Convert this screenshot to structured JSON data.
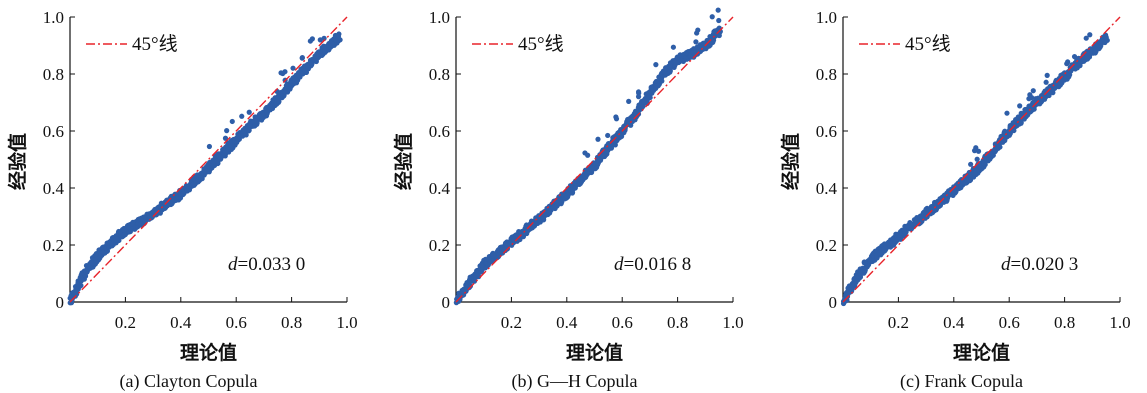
{
  "chart_data": [
    {
      "type": "scatter",
      "xlabel": "理论值",
      "ylabel": "经验值",
      "xlim": [
        0,
        1
      ],
      "ylim": [
        0,
        1
      ],
      "xticks": [
        "0.2",
        "0.4",
        "0.6",
        "0.8",
        "1.0"
      ],
      "yticks": [
        "0",
        "0.2",
        "0.4",
        "0.6",
        "0.8",
        "1.0"
      ],
      "legend": "45°线",
      "legend_position": "top-left",
      "stat_prefix": "d",
      "stat_value": "=0.033 0",
      "caption": "(a) Clayton Copula",
      "point_color": "#2e5ea8",
      "reference_line_color": "#e8232a",
      "reference_line": {
        "x": [
          0,
          1
        ],
        "y": [
          0,
          1
        ]
      },
      "series": [
        {
          "x": [
            0.0,
            0.03,
            0.06,
            0.1,
            0.15,
            0.2,
            0.25,
            0.3,
            0.4,
            0.5,
            0.6,
            0.7,
            0.75,
            0.8,
            0.85,
            0.9,
            0.95,
            0.97
          ],
          "y": [
            0.0,
            0.06,
            0.11,
            0.16,
            0.21,
            0.25,
            0.28,
            0.31,
            0.38,
            0.47,
            0.57,
            0.66,
            0.71,
            0.77,
            0.82,
            0.87,
            0.91,
            0.93
          ]
        }
      ]
    },
    {
      "type": "scatter",
      "xlabel": "理论值",
      "ylabel": "经验值",
      "xlim": [
        0,
        1
      ],
      "ylim": [
        0,
        1
      ],
      "xticks": [
        "0.2",
        "0.4",
        "0.6",
        "0.8",
        "1.0"
      ],
      "yticks": [
        "0",
        "0.2",
        "0.4",
        "0.6",
        "0.8",
        "1.0"
      ],
      "legend": "45°线",
      "legend_position": "top-left",
      "stat_prefix": "d",
      "stat_value": "=0.016 8",
      "caption": "(b) G—H Copula",
      "point_color": "#2e5ea8",
      "reference_line_color": "#e8232a",
      "reference_line": {
        "x": [
          0,
          1
        ],
        "y": [
          0,
          1
        ]
      },
      "series": [
        {
          "x": [
            0.0,
            0.03,
            0.06,
            0.1,
            0.15,
            0.2,
            0.3,
            0.4,
            0.5,
            0.6,
            0.65,
            0.7,
            0.75,
            0.8,
            0.85,
            0.9,
            0.95
          ],
          "y": [
            0.0,
            0.04,
            0.08,
            0.13,
            0.17,
            0.21,
            0.29,
            0.38,
            0.48,
            0.6,
            0.66,
            0.73,
            0.8,
            0.85,
            0.87,
            0.9,
            0.95
          ]
        }
      ]
    },
    {
      "type": "scatter",
      "xlabel": "理论值",
      "ylabel": "经验值",
      "xlim": [
        0,
        1
      ],
      "ylim": [
        0,
        1
      ],
      "xticks": [
        "0.2",
        "0.4",
        "0.6",
        "0.8",
        "1.0"
      ],
      "yticks": [
        "0",
        "0.2",
        "0.4",
        "0.6",
        "0.8",
        "1.0"
      ],
      "legend": "45°线",
      "legend_position": "top-left",
      "stat_prefix": "d",
      "stat_value": "=0.020 3",
      "caption": "(c) Frank Copula",
      "point_color": "#2e5ea8",
      "reference_line_color": "#e8232a",
      "reference_line": {
        "x": [
          0,
          1
        ],
        "y": [
          0,
          1
        ]
      },
      "series": [
        {
          "x": [
            0.0,
            0.03,
            0.06,
            0.1,
            0.15,
            0.2,
            0.25,
            0.3,
            0.4,
            0.5,
            0.6,
            0.7,
            0.8,
            0.85,
            0.9,
            0.95
          ],
          "y": [
            0.0,
            0.05,
            0.1,
            0.15,
            0.19,
            0.23,
            0.27,
            0.31,
            0.39,
            0.48,
            0.6,
            0.7,
            0.79,
            0.84,
            0.88,
            0.93
          ]
        }
      ]
    }
  ]
}
